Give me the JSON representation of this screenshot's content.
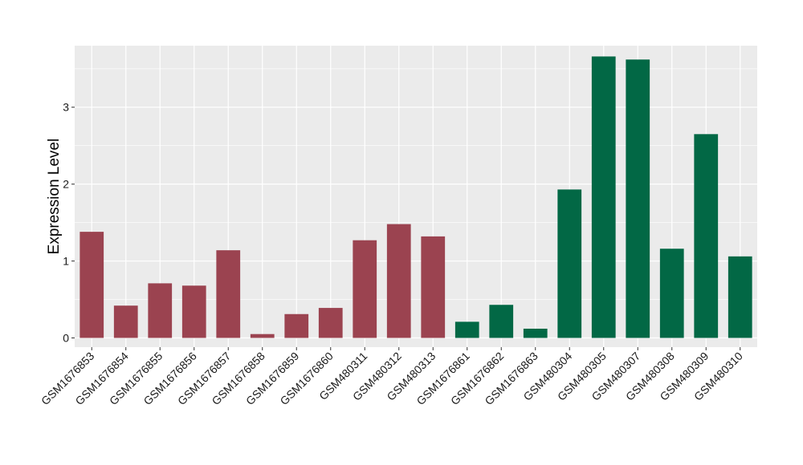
{
  "chart_data": {
    "type": "bar",
    "title": "",
    "xlabel": "",
    "ylabel": "Expression Level",
    "ylim": [
      -0.12,
      3.8
    ],
    "yticks": [
      0,
      1,
      2,
      3
    ],
    "grid": true,
    "legend": "none",
    "categories": [
      "GSM1676853",
      "GSM1676854",
      "GSM1676855",
      "GSM1676856",
      "GSM1676857",
      "GSM1676858",
      "GSM1676859",
      "GSM1676860",
      "GSM480311",
      "GSM480312",
      "GSM480313",
      "GSM1676861",
      "GSM1676862",
      "GSM1676863",
      "GSM480304",
      "GSM480305",
      "GSM480307",
      "GSM480308",
      "GSM480309",
      "GSM480310"
    ],
    "values": [
      1.38,
      0.42,
      0.71,
      0.68,
      1.14,
      0.05,
      0.31,
      0.39,
      1.27,
      1.48,
      1.32,
      0.21,
      0.43,
      0.12,
      1.93,
      3.66,
      3.62,
      1.16,
      2.65,
      1.06
    ],
    "groups": [
      "a",
      "a",
      "a",
      "a",
      "a",
      "a",
      "a",
      "a",
      "a",
      "a",
      "a",
      "b",
      "b",
      "b",
      "b",
      "b",
      "b",
      "b",
      "b",
      "b"
    ],
    "colors": {
      "a": "#9b4350",
      "b": "#026845"
    },
    "panel_background": "#ebebeb",
    "grid_color": "#ffffff"
  }
}
